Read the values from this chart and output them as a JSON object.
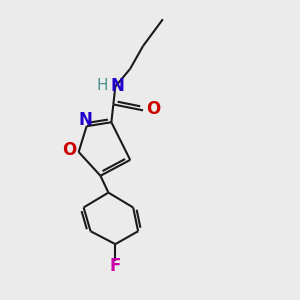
{
  "background_color": "#ebebeb",
  "bond_color": "#1a1a1a",
  "bond_width": 1.5,
  "figsize": [
    3.0,
    3.0
  ],
  "dpi": 100,
  "xlim": [
    0,
    300
  ],
  "ylim": [
    0,
    300
  ]
}
